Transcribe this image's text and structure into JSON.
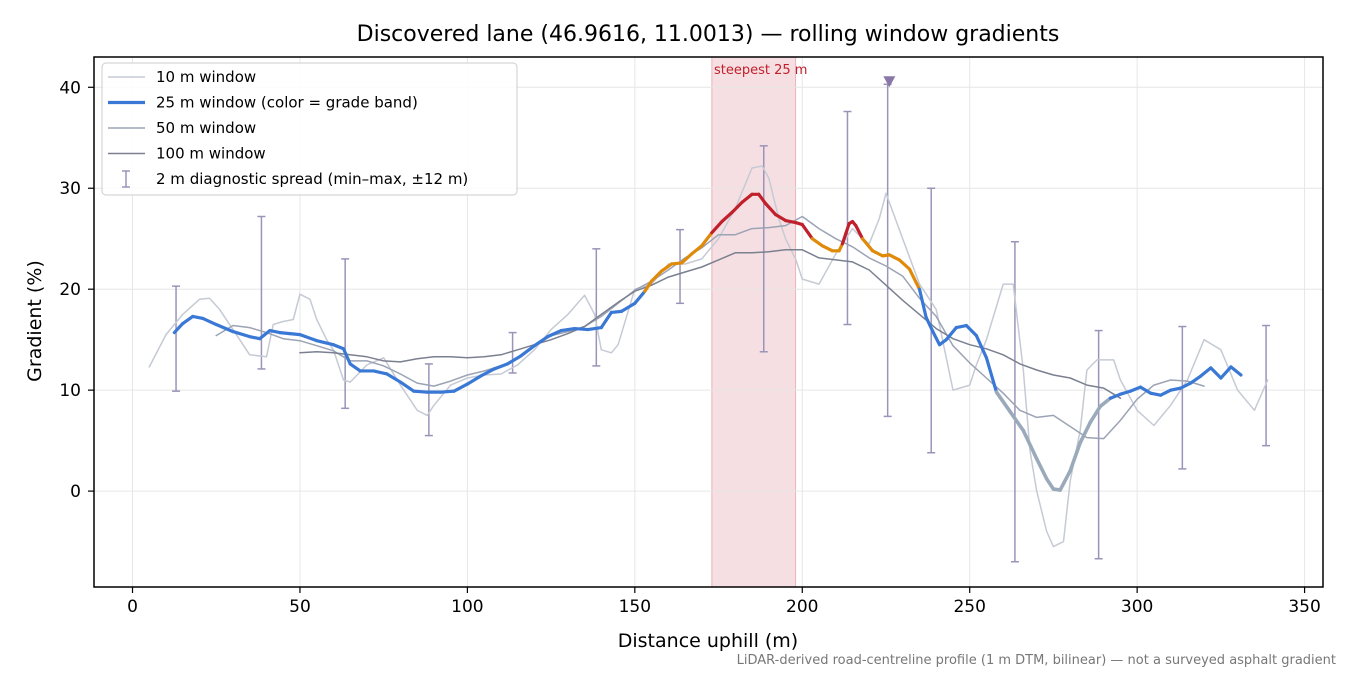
{
  "chart_data": {
    "type": "line",
    "title": "Discovered lane (46.9616, 11.0013) — rolling window gradients",
    "xlabel": "Distance uphill (m)",
    "ylabel": "Gradient (%)",
    "xlim": [
      -11.5,
      355.5
    ],
    "ylim": [
      -9.5,
      43
    ],
    "xticks": [
      0,
      50,
      100,
      150,
      200,
      250,
      300,
      350
    ],
    "yticks": [
      0,
      10,
      20,
      30,
      40
    ],
    "grid": true,
    "legend_position": "top-left",
    "footnote": "LiDAR-derived road-centreline profile (1 m DTM, bilinear) — not a surveyed asphalt gradient",
    "highlight": {
      "x_start": 173,
      "x_end": 198,
      "label": "steepest 25 m",
      "color": "#e6a4ab"
    },
    "marker": {
      "x": 226,
      "y": 40.6,
      "symbol": "triangle-down",
      "color": "#8878a8"
    },
    "legend": [
      {
        "label": "10 m window",
        "style": "line",
        "color": "#c5cad4",
        "width": 1.5
      },
      {
        "label": "25 m window (color = grade band)",
        "style": "line",
        "color": "#3a78d6",
        "width": 3.2
      },
      {
        "label": "50 m window",
        "style": "line",
        "color": "#9ba3b4",
        "width": 1.5
      },
      {
        "label": "100 m window",
        "style": "line",
        "color": "#7a8090",
        "width": 1.5
      },
      {
        "label": "2 m diagnostic spread (min–max, ±12 m)",
        "style": "errorbar",
        "color": "#9a94b8",
        "width": 1.5
      }
    ],
    "grade_bands": [
      {
        "min": -100,
        "max": 20,
        "color": "#3a78d6"
      },
      {
        "min": 20,
        "max": 25,
        "color": "#e08a0a"
      },
      {
        "min": 25,
        "max": 100,
        "color": "#c0202c"
      }
    ],
    "faded_color": "#9aaabb",
    "series": [
      {
        "name": "10 m window",
        "color": "#c5cad4",
        "width": 1.5,
        "x": [
          5,
          10,
          15,
          20,
          23,
          26,
          30,
          35,
          40,
          42,
          45,
          48,
          50,
          53,
          55,
          58,
          60,
          63,
          65,
          70,
          75,
          80,
          85,
          88,
          90,
          95,
          100,
          105,
          110,
          115,
          120,
          125,
          130,
          135,
          138,
          140,
          143,
          145,
          150,
          155,
          160,
          165,
          170,
          175,
          180,
          185,
          188,
          190,
          193,
          195,
          198,
          200,
          205,
          210,
          215,
          218,
          220,
          223,
          225,
          230,
          235,
          240,
          245,
          250,
          252,
          255,
          260,
          263,
          266,
          268,
          270,
          273,
          275,
          278,
          280,
          283,
          285,
          288,
          290,
          293,
          295,
          300,
          305,
          310,
          315,
          320,
          325,
          330,
          335,
          339
        ],
        "y": [
          12.3,
          15.5,
          17.5,
          19,
          19.1,
          18,
          16,
          13.5,
          13.3,
          16.5,
          16.8,
          17,
          19.5,
          19,
          17,
          15,
          14,
          11,
          10.8,
          12.5,
          13.2,
          10.5,
          8,
          7.5,
          8.5,
          10.5,
          11.2,
          11.5,
          11.6,
          12.5,
          14,
          16,
          17.5,
          19.4,
          17.5,
          14,
          13.7,
          14.5,
          20,
          20.5,
          22.5,
          22.5,
          23,
          25,
          28,
          32,
          32.2,
          31,
          27,
          25,
          23,
          21,
          20.5,
          23.5,
          26,
          25,
          24.5,
          27,
          29.5,
          25,
          20.5,
          18,
          10,
          10.5,
          12.5,
          15,
          20.5,
          20.5,
          12,
          4,
          0,
          -4,
          -5.5,
          -5,
          1,
          6,
          12,
          13,
          13,
          13,
          11,
          8,
          6.5,
          8.5,
          11,
          15,
          14,
          10,
          8,
          11
        ]
      },
      {
        "name": "25 m window (color = grade band)",
        "color": "#3a78d6",
        "width": 3.2,
        "x": [
          12.5,
          15,
          18,
          21,
          25,
          30,
          35,
          38,
          41,
          44,
          47,
          50,
          55,
          60,
          63,
          65,
          68,
          72,
          76,
          80,
          84,
          88,
          92,
          96,
          100,
          104,
          108,
          112,
          116,
          120,
          124,
          128,
          132,
          136,
          140,
          143,
          146,
          150,
          153,
          155,
          158,
          161,
          164,
          167,
          170,
          173,
          176,
          179,
          182,
          185,
          187,
          189,
          192,
          195,
          198,
          200,
          203,
          206,
          209,
          211,
          212,
          213,
          214,
          215,
          216,
          218,
          221,
          224,
          226,
          229,
          232,
          235,
          237,
          239,
          241,
          243,
          246,
          249,
          252,
          255,
          258,
          262,
          266,
          270,
          273,
          275,
          277,
          280,
          283,
          286,
          289,
          292,
          295,
          298,
          301,
          304,
          307,
          310,
          313,
          316,
          319,
          322,
          325,
          328,
          331
        ],
        "y": [
          15.7,
          16.6,
          17.3,
          17.1,
          16.5,
          15.8,
          15.3,
          15.1,
          15.9,
          15.7,
          15.6,
          15.5,
          14.9,
          14.5,
          14.1,
          12.6,
          11.9,
          11.9,
          11.6,
          10.8,
          9.9,
          9.8,
          9.8,
          9.9,
          10.6,
          11.4,
          12.1,
          12.6,
          13.4,
          14.4,
          15.3,
          15.9,
          16.1,
          16,
          16.2,
          17.7,
          17.8,
          18.6,
          19.8,
          20.8,
          21.8,
          22.5,
          22.6,
          23.5,
          24.3,
          25.6,
          26.7,
          27.6,
          28.6,
          29.4,
          29.4,
          28.5,
          27.4,
          26.8,
          26.6,
          26.4,
          25,
          24.3,
          23.8,
          23.8,
          24.5,
          25.5,
          26.5,
          26.7,
          26.3,
          25,
          23.8,
          23.3,
          23.4,
          22.9,
          22,
          20,
          17.2,
          15.8,
          14.5,
          15,
          16.2,
          16.4,
          15.4,
          13.2,
          9.8,
          7.9,
          6,
          3.2,
          1.2,
          0.2,
          0.1,
          2,
          4.8,
          6.8,
          8.4,
          9.2,
          9.6,
          9.9,
          10.3,
          9.7,
          9.5,
          10,
          10.2,
          10.7,
          11.4,
          12.2,
          11.2,
          12.3,
          11.5
        ]
      },
      {
        "name": "50 m window",
        "color": "#9ba3b4",
        "width": 1.5,
        "x": [
          25,
          30,
          35,
          40,
          45,
          50,
          55,
          60,
          65,
          70,
          75,
          80,
          85,
          90,
          95,
          100,
          105,
          110,
          115,
          120,
          125,
          130,
          135,
          140,
          145,
          150,
          155,
          160,
          165,
          170,
          175,
          180,
          185,
          190,
          195,
          200,
          205,
          210,
          215,
          220,
          225,
          230,
          235,
          240,
          245,
          250,
          255,
          260,
          265,
          270,
          275,
          280,
          285,
          290,
          295,
          300,
          305,
          310,
          315,
          320
        ],
        "y": [
          15.4,
          16.4,
          16.2,
          15.7,
          15.1,
          14.9,
          14.4,
          13.9,
          12.9,
          12.9,
          12.4,
          11.6,
          10.7,
          10.4,
          10.9,
          11.5,
          11.9,
          12.4,
          13.1,
          14.4,
          15.4,
          15.8,
          16.3,
          17.3,
          18.6,
          19.9,
          20.8,
          21.9,
          23.1,
          24.1,
          25.4,
          25.4,
          26,
          26.1,
          26.3,
          27.2,
          26,
          25,
          24.2,
          23.1,
          22.3,
          21.3,
          19.1,
          17.3,
          14.4,
          12.7,
          11.2,
          9.7,
          8,
          7.3,
          7.5,
          6.4,
          5.3,
          5.2,
          7,
          9.1,
          10.5,
          11,
          10.9,
          10.4
        ]
      },
      {
        "name": "100 m window",
        "color": "#7a8090",
        "width": 1.5,
        "x": [
          50,
          55,
          60,
          65,
          70,
          75,
          80,
          85,
          90,
          95,
          100,
          105,
          110,
          115,
          120,
          125,
          130,
          135,
          140,
          145,
          150,
          155,
          160,
          165,
          170,
          175,
          180,
          185,
          190,
          195,
          200,
          205,
          210,
          215,
          220,
          225,
          230,
          235,
          240,
          245,
          250,
          255,
          260,
          265,
          270,
          275,
          280,
          285,
          290,
          295
        ],
        "y": [
          13.7,
          13.8,
          13.7,
          13.5,
          13.3,
          12.9,
          12.8,
          13.1,
          13.3,
          13.3,
          13.2,
          13.3,
          13.5,
          14,
          14.5,
          15,
          15.6,
          16.3,
          17.5,
          18.7,
          19.8,
          20.4,
          21.2,
          21.7,
          22.2,
          22.9,
          23.6,
          23.6,
          23.7,
          23.9,
          23.9,
          23.1,
          22.9,
          22.7,
          21.9,
          20.4,
          18.9,
          17.5,
          16.1,
          15.1,
          14.5,
          14.1,
          13.5,
          12.6,
          12,
          11.5,
          11.2,
          10.5,
          10.2,
          9.2
        ]
      }
    ],
    "errorbars": [
      {
        "x": 13,
        "min": 9.9,
        "max": 20.3
      },
      {
        "x": 38.5,
        "min": 12.1,
        "max": 27.2
      },
      {
        "x": 63.5,
        "min": 8.2,
        "max": 23
      },
      {
        "x": 88.5,
        "min": 5.5,
        "max": 12.6
      },
      {
        "x": 113.5,
        "min": 11.7,
        "max": 15.7
      },
      {
        "x": 138.5,
        "min": 12.4,
        "max": 24
      },
      {
        "x": 163.5,
        "min": 18.6,
        "max": 25.9
      },
      {
        "x": 188.5,
        "min": 13.8,
        "max": 34.2
      },
      {
        "x": 213.5,
        "min": 16.5,
        "max": 37.6
      },
      {
        "x": 225.5,
        "min": 7.4,
        "max": 40.3
      },
      {
        "x": 238.5,
        "min": 3.8,
        "max": 30
      },
      {
        "x": 263.5,
        "min": -7,
        "max": 24.7
      },
      {
        "x": 288.5,
        "min": -6.7,
        "max": 15.9
      },
      {
        "x": 313.5,
        "min": 2.2,
        "max": 16.3
      },
      {
        "x": 338.5,
        "min": 4.5,
        "max": 16.4
      }
    ]
  }
}
